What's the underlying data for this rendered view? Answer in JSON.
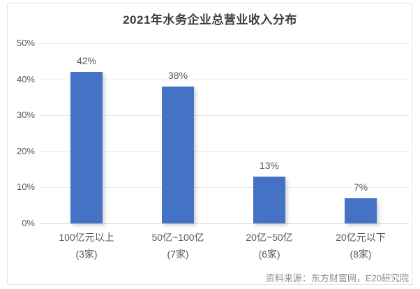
{
  "title": "2021年水务企业总营业收入分布",
  "colors": {
    "bar": "#4472c4",
    "gridline": "#e9e9e9",
    "title_text": "#3f3f3f",
    "label_text": "#595959",
    "source_text": "#8c8c8c"
  },
  "chart_data": {
    "type": "bar",
    "title": "2021年水务企业总营业收入分布",
    "categories": [
      "100亿元以上",
      "50亿~100亿",
      "20亿~50亿",
      "20亿元以下"
    ],
    "category_counts": [
      "(3家)",
      "(7家)",
      "(6家)",
      "(8家)"
    ],
    "values": [
      42,
      38,
      13,
      7
    ],
    "value_labels": [
      "42%",
      "38%",
      "13%",
      "7%"
    ],
    "xlabel": "",
    "ylabel": "",
    "ylim": [
      0,
      50
    ],
    "yticks": [
      0,
      10,
      20,
      30,
      40,
      50
    ],
    "ytick_labels": [
      "0%",
      "10%",
      "20%",
      "30%",
      "40%",
      "50%"
    ],
    "grid": true,
    "legend_position": "none",
    "source": "资料来源：东方财富网，E20研究院"
  }
}
